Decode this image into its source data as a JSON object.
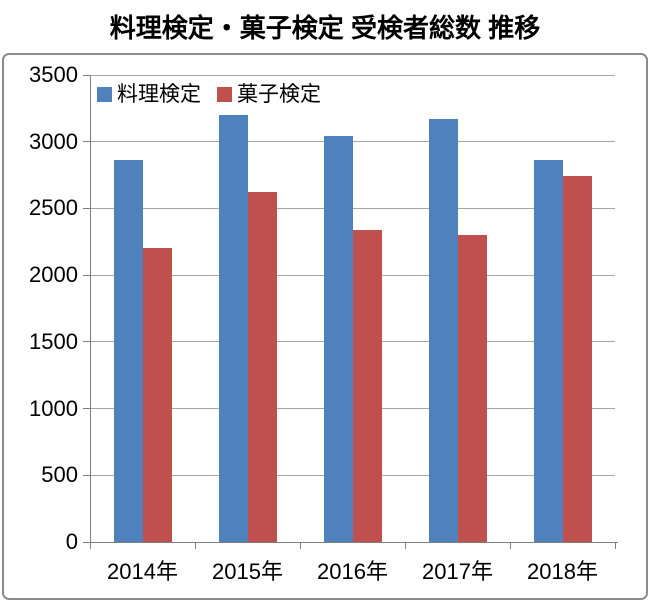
{
  "ui": {
    "title": "料理検定・菓子検定 受検者総数 推移"
  },
  "chart_data": {
    "type": "bar",
    "title": "料理検定・菓子検定 受検者総数 推移",
    "categories": [
      "2014年",
      "2015年",
      "2016年",
      "2017年",
      "2018年"
    ],
    "series": [
      {
        "name": "料理検定",
        "color": "#4F81BD",
        "values": [
          2860,
          3200,
          3040,
          3170,
          2860
        ]
      },
      {
        "name": "菓子検定",
        "color": "#C0504D",
        "values": [
          2200,
          2620,
          2340,
          2300,
          2740
        ]
      }
    ],
    "ylim": [
      0,
      3500
    ],
    "ytick_step": 500,
    "grid": true,
    "legend_position": "top-left-inside",
    "gridline_color": "#A6A6A6",
    "axis_color": "#7F7F7F",
    "frame_border_color": "#8C8C8C",
    "background_color": "#FFFFFF"
  }
}
